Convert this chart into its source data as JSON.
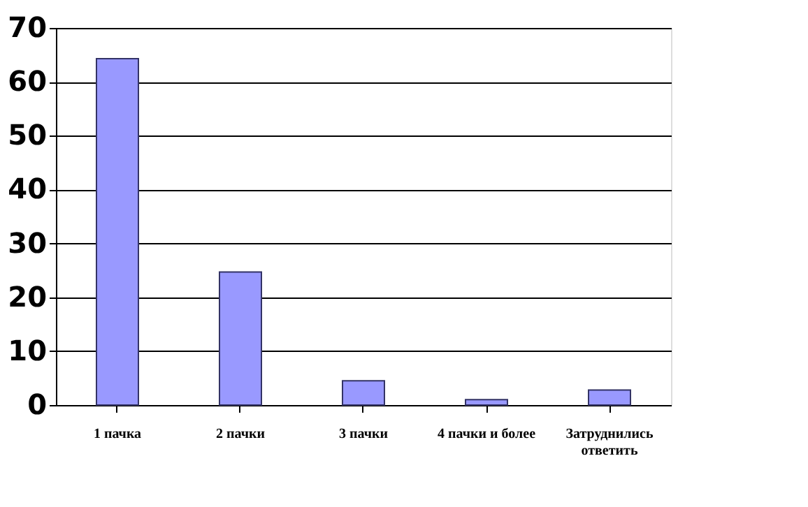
{
  "chart_data": {
    "type": "bar",
    "categories": [
      "1 пачка",
      "2 пачки",
      "3 пачки",
      "4 пачки и более",
      "Затруднились ответить"
    ],
    "values": [
      64.3,
      24.7,
      4.5,
      1,
      2.8
    ],
    "color": "#9999ff",
    "ylim": [
      0,
      70
    ],
    "yticks": [
      0,
      10,
      20,
      30,
      40,
      50,
      60,
      70
    ],
    "grid": "y"
  }
}
